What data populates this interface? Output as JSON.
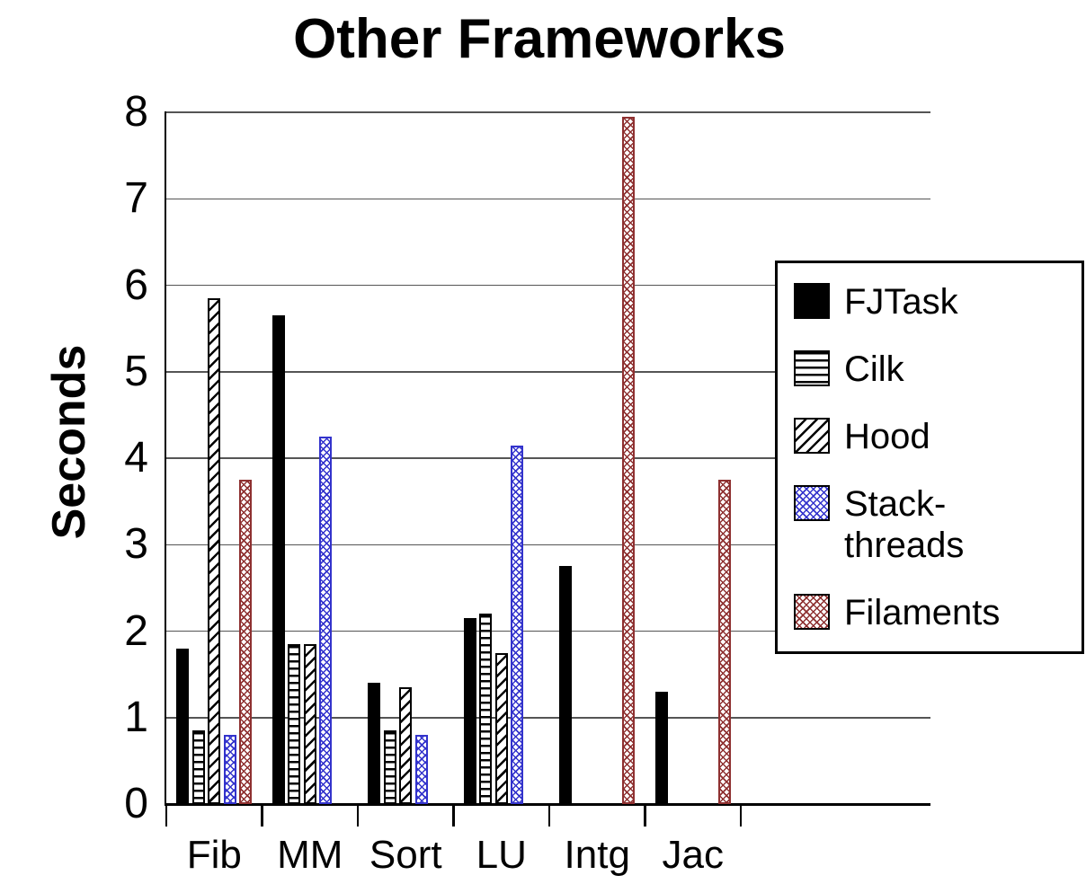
{
  "chart_data": {
    "type": "bar",
    "title": "Other Frameworks",
    "xlabel": "",
    "ylabel": "Seconds",
    "ylim": [
      0,
      8
    ],
    "yticks": [
      0,
      1,
      2,
      3,
      4,
      5,
      6,
      7,
      8
    ],
    "grid": "horizontal",
    "legend_position": "right",
    "categories": [
      "Fib",
      "MM",
      "Sort",
      "LU",
      "Intg",
      "Jac"
    ],
    "series": [
      {
        "name": "FJTask",
        "legend_label": "FJTask",
        "pattern": "solid-black",
        "color": "#000000",
        "values": [
          1.8,
          5.65,
          1.4,
          2.15,
          2.75,
          1.3
        ]
      },
      {
        "name": "Cilk",
        "legend_label": "Cilk",
        "pattern": "horizontal-stripes",
        "color": "#000000",
        "values": [
          0.85,
          1.85,
          0.85,
          2.2,
          0,
          0
        ]
      },
      {
        "name": "Hood",
        "legend_label": "Hood",
        "pattern": "diagonal-stripes",
        "color": "#000000",
        "values": [
          5.85,
          1.85,
          1.35,
          1.75,
          0,
          0
        ]
      },
      {
        "name": "Stack-threads",
        "legend_label": "Stack-\nthreads",
        "pattern": "crosshatch-blue",
        "color": "#3333cc",
        "values": [
          0.8,
          4.25,
          0.8,
          4.15,
          0,
          0
        ]
      },
      {
        "name": "Filaments",
        "legend_label": "Filaments",
        "pattern": "crosshatch-red",
        "color": "#8e3030",
        "values": [
          3.75,
          0,
          0,
          0,
          7.95,
          3.75
        ]
      }
    ]
  }
}
